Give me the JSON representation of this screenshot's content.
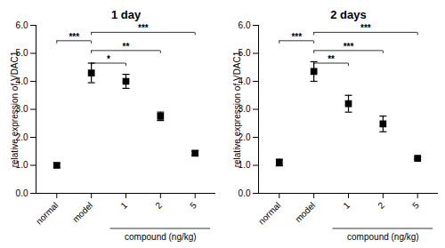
{
  "chart_data": [
    {
      "type": "scatter",
      "title": "1 day",
      "ylabel": "relative expression of VDAC1",
      "xlabel": "compound (ng/kg)",
      "xlabel_span": [
        "1",
        "5"
      ],
      "categories": [
        "normal",
        "model",
        "1",
        "2",
        "5"
      ],
      "values": [
        1.0,
        4.3,
        4.0,
        2.75,
        1.43
      ],
      "errors": [
        0.08,
        0.35,
        0.25,
        0.15,
        0.08
      ],
      "marker": "square",
      "color": "black",
      "ylim": [
        0,
        6
      ],
      "yticks": [
        0,
        1,
        2,
        3,
        4,
        5,
        6
      ],
      "annotations": [
        {
          "text": "***",
          "from": "normal",
          "to": "model",
          "y": 5.45
        },
        {
          "text": "*",
          "from": "model",
          "to": "1",
          "y": 4.65
        },
        {
          "text": "**",
          "from": "model",
          "to": "2",
          "y": 5.1
        },
        {
          "text": "***",
          "from": "model",
          "to": "5",
          "y": 5.75
        }
      ]
    },
    {
      "type": "scatter",
      "title": "2 days",
      "ylabel": "relative expression of VDAC1",
      "xlabel": "compound (ng/kg)",
      "xlabel_span": [
        "1",
        "5"
      ],
      "categories": [
        "normal",
        "model",
        "1",
        "2",
        "5"
      ],
      "values": [
        1.1,
        4.35,
        3.2,
        2.48,
        1.25
      ],
      "errors": [
        0.12,
        0.35,
        0.3,
        0.28,
        0.05
      ],
      "marker": "square",
      "color": "black",
      "ylim": [
        0,
        6
      ],
      "yticks": [
        0,
        1,
        2,
        3,
        4,
        5,
        6
      ],
      "annotations": [
        {
          "text": "***",
          "from": "normal",
          "to": "model",
          "y": 5.45
        },
        {
          "text": "**",
          "from": "model",
          "to": "1",
          "y": 4.65
        },
        {
          "text": "***",
          "from": "model",
          "to": "2",
          "y": 5.1
        },
        {
          "text": "***",
          "from": "model",
          "to": "5",
          "y": 5.75
        }
      ]
    }
  ]
}
